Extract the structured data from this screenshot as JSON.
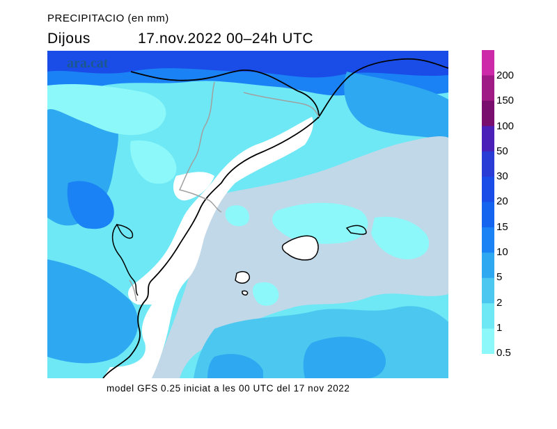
{
  "title": "PRECIPITACIO (en mm)",
  "day": "Dijous",
  "datetime": "17.nov.2022 00–24h UTC",
  "footer": "model GFS 0.25 iniciat a les 00 UTC del 17 nov 2022",
  "watermark": "ara.cat",
  "legend": {
    "labels": [
      "200",
      "150",
      "100",
      "50",
      "30",
      "20",
      "15",
      "10",
      "5",
      "2",
      "1",
      "0.5"
    ],
    "colors": [
      "#cc2aa9",
      "#a01a85",
      "#7a0e6e",
      "#4a20b8",
      "#2a3cd6",
      "#1a4de8",
      "#1464f0",
      "#1a82f5",
      "#2ea8f0",
      "#4cc8f0",
      "#6ee8f5",
      "#8cf8fa"
    ]
  },
  "map_colors": {
    "dry": "#ffffff",
    "sea_dry": "#c0d8e8",
    "mm_0_5": "#8cf8fa",
    "mm_1": "#6ee8f5",
    "mm_2": "#4cc8f0",
    "mm_5": "#2ea8f0",
    "mm_10": "#1a82f5",
    "mm_15": "#1464f0",
    "mm_20": "#1a4de8",
    "coast": "#000000",
    "border": "#a0a0a0"
  }
}
